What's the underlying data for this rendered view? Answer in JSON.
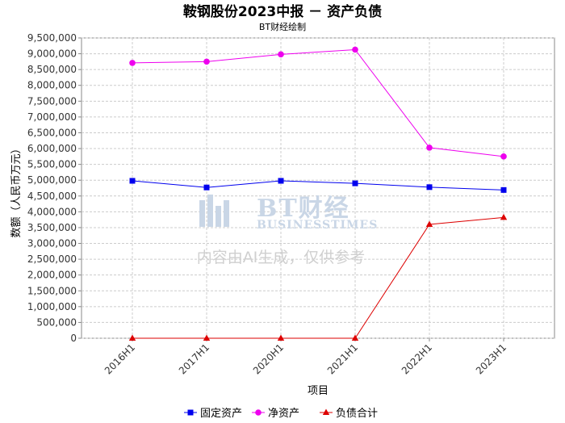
{
  "chart_data": {
    "type": "line",
    "title": "鞍钢股份2023中报 － 资产负债",
    "subtitle": "BT财经绘制",
    "xlabel": "项目",
    "ylabel": "数额（人民币万元）",
    "categories": [
      "2016H1",
      "2017H1",
      "2020H1",
      "2021H1",
      "2022H1",
      "2023H1"
    ],
    "ylim": [
      0,
      9500000
    ],
    "yticks": [
      0,
      500000,
      1000000,
      1500000,
      2000000,
      2500000,
      3000000,
      3500000,
      4000000,
      4500000,
      5000000,
      5500000,
      6000000,
      6500000,
      7000000,
      7500000,
      8000000,
      8500000,
      9000000,
      9500000
    ],
    "ytick_labels": [
      "0",
      "500,000",
      "1,000,000",
      "1,500,000",
      "2,000,000",
      "2,500,000",
      "3,000,000",
      "3,500,000",
      "4,000,000",
      "4,500,000",
      "5,000,000",
      "5,500,000",
      "6,000,000",
      "6,500,000",
      "7,000,000",
      "7,500,000",
      "8,000,000",
      "8,500,000",
      "9,000,000",
      "9,500,000"
    ],
    "grid": true,
    "legend_position": "bottom",
    "series": [
      {
        "name": "固定资产",
        "color": "#0000ee",
        "marker": "square",
        "values": [
          4980000,
          4770000,
          4980000,
          4900000,
          4780000,
          4690000
        ]
      },
      {
        "name": "净资产",
        "color": "#ee00ee",
        "marker": "circle",
        "values": [
          8710000,
          8750000,
          8980000,
          9130000,
          6030000,
          5750000
        ]
      },
      {
        "name": "负债合计",
        "color": "#dd0000",
        "marker": "triangle",
        "values": [
          0,
          0,
          0,
          0,
          3600000,
          3820000
        ]
      }
    ]
  },
  "watermark": {
    "brand": "BT财经",
    "brand_en": "BUSINESSTIMES",
    "notice": "内容由AI生成，仅供参考"
  }
}
